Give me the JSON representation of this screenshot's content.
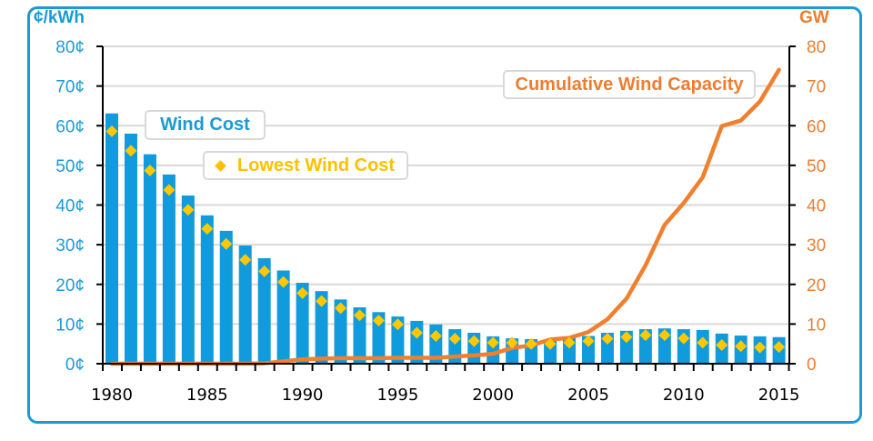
{
  "chart_data": {
    "type": "bar",
    "title": "",
    "xlabel": "",
    "ylabel_left": "¢/kWh",
    "ylabel_right": "GW",
    "ylim_left": [
      0,
      80
    ],
    "ylim_right": [
      0,
      80
    ],
    "grid": true,
    "x": [
      1980,
      1981,
      1982,
      1983,
      1984,
      1985,
      1986,
      1987,
      1988,
      1989,
      1990,
      1991,
      1992,
      1993,
      1994,
      1995,
      1996,
      1997,
      1998,
      1999,
      2000,
      2001,
      2002,
      2003,
      2004,
      2005,
      2006,
      2007,
      2008,
      2009,
      2010,
      2011,
      2012,
      2013,
      2014,
      2015
    ],
    "x_tick_labels": [
      "1980",
      "1985",
      "1990",
      "1995",
      "2000",
      "2005",
      "2010",
      "2015"
    ],
    "x_tick_label_years": [
      1980,
      1985,
      1990,
      1995,
      2000,
      2005,
      2010,
      2015
    ],
    "y_left_tick_labels": [
      "0¢",
      "10¢",
      "20¢",
      "30¢",
      "40¢",
      "50¢",
      "60¢",
      "70¢",
      "80¢"
    ],
    "y_right_tick_labels": [
      "0",
      "10",
      "20",
      "30",
      "40",
      "50",
      "60",
      "70",
      "80"
    ],
    "y_tick_values": [
      0,
      10,
      20,
      30,
      40,
      50,
      60,
      70,
      80
    ],
    "series": [
      {
        "name": "Wind Cost",
        "type": "bar",
        "axis": "left",
        "color": "#0f9bdc",
        "values": [
          63.1,
          58.0,
          52.8,
          47.7,
          42.4,
          37.4,
          33.5,
          29.8,
          26.6,
          23.5,
          20.4,
          18.3,
          16.2,
          14.2,
          13.0,
          11.9,
          10.8,
          9.9,
          8.7,
          7.8,
          6.9,
          6.4,
          6.2,
          6.0,
          6.8,
          7.0,
          7.8,
          8.3,
          8.7,
          8.9,
          8.7,
          8.5,
          7.6,
          7.1,
          6.9,
          6.7
        ]
      },
      {
        "name": "Lowest Wind Cost",
        "type": "scatter",
        "marker": "diamond",
        "axis": "left",
        "color": "#ffc800",
        "values": [
          58.6,
          53.7,
          48.7,
          43.8,
          38.8,
          34.0,
          30.2,
          26.2,
          23.3,
          20.6,
          17.8,
          15.8,
          14.0,
          12.2,
          10.9,
          9.9,
          7.8,
          7.0,
          6.3,
          5.7,
          5.3,
          5.3,
          5.0,
          5.0,
          5.3,
          5.7,
          6.3,
          6.7,
          7.2,
          7.2,
          6.4,
          5.3,
          4.7,
          4.4,
          4.1,
          4.2
        ]
      },
      {
        "name": "Cumulative Wind Capacity",
        "type": "line",
        "axis": "right",
        "color": "#f07f2e",
        "values": [
          0,
          0,
          0,
          0,
          0,
          0,
          0,
          0,
          0.1,
          0.6,
          1.1,
          1.3,
          1.4,
          1.4,
          1.4,
          1.5,
          1.5,
          1.5,
          1.8,
          2.1,
          2.5,
          4.0,
          4.6,
          6.1,
          6.5,
          8.0,
          11.2,
          16.4,
          24.8,
          35.0,
          40.5,
          47.0,
          59.9,
          61.3,
          66.1,
          74.1
        ]
      }
    ],
    "legend": [
      {
        "label": "Wind Cost",
        "color": "#1b9ad6",
        "placement": "upper-left"
      },
      {
        "label": "Lowest Wind Cost",
        "color": "#ffc000",
        "marker": "diamond",
        "placement": "upper-left"
      },
      {
        "label": "Cumulative Wind Capacity",
        "color": "#ed7d31",
        "placement": "top-right"
      }
    ]
  }
}
